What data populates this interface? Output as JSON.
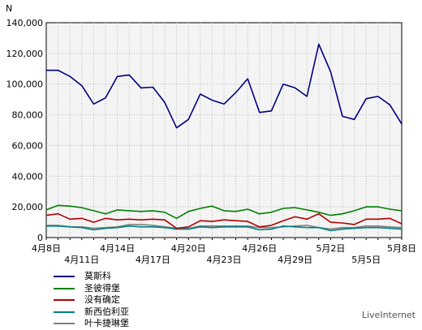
{
  "chart_data": {
    "type": "line",
    "ylabel": "N",
    "ylim": [
      0,
      140000
    ],
    "yticks": [
      0,
      20000,
      40000,
      60000,
      80000,
      100000,
      120000,
      140000
    ],
    "ytick_labels": [
      "0",
      "20,000",
      "40,000",
      "60,000",
      "80,000",
      "100,000",
      "120,000",
      "140,000"
    ],
    "x_count": 31,
    "xtick_labels_row1": [
      {
        "i": 0,
        "label": "4月8日"
      },
      {
        "i": 6,
        "label": "4月14日"
      },
      {
        "i": 12,
        "label": "4月20日"
      },
      {
        "i": 18,
        "label": "4月26日"
      },
      {
        "i": 24,
        "label": "5月2日"
      },
      {
        "i": 30,
        "label": "5月8日"
      }
    ],
    "xtick_labels_row2": [
      {
        "i": 3,
        "label": "4月11日"
      },
      {
        "i": 9,
        "label": "4月17日"
      },
      {
        "i": 15,
        "label": "4月23日"
      },
      {
        "i": 21,
        "label": "4月29日"
      },
      {
        "i": 27,
        "label": "5月5日"
      }
    ],
    "grid": true,
    "legend_position": "bottom",
    "series": [
      {
        "name": "莫斯科",
        "color": "#000080",
        "values": [
          109000,
          109000,
          105000,
          99000,
          87000,
          91000,
          105000,
          106000,
          97500,
          98000,
          88000,
          71500,
          77000,
          93500,
          89500,
          87000,
          94500,
          103500,
          81500,
          82500,
          100000,
          97500,
          92000,
          126000,
          108000,
          79000,
          77000,
          90500,
          92000,
          86500,
          74000
        ]
      },
      {
        "name": "圣彼得堡",
        "color": "#008000",
        "values": [
          18000,
          21000,
          20500,
          19500,
          17500,
          15500,
          18000,
          17500,
          17000,
          17500,
          16500,
          12500,
          17000,
          19000,
          20500,
          17500,
          17000,
          18500,
          15500,
          16500,
          19000,
          19500,
          18000,
          16500,
          14500,
          15500,
          17500,
          20000,
          20000,
          18500,
          17500
        ]
      },
      {
        "name": "没有确定",
        "color": "#b00000",
        "values": [
          14500,
          15500,
          12000,
          12500,
          10000,
          12500,
          11500,
          12000,
          11500,
          12000,
          11500,
          6000,
          7000,
          11000,
          10500,
          11500,
          11000,
          10500,
          7000,
          8000,
          11000,
          13500,
          12000,
          15500,
          10000,
          9500,
          8500,
          12000,
          12000,
          12500,
          9000
        ]
      },
      {
        "name": "新西伯利亚",
        "color": "#008080",
        "values": [
          7500,
          7500,
          7000,
          6500,
          5000,
          6000,
          6500,
          7500,
          7000,
          7000,
          6500,
          5500,
          5500,
          7000,
          6500,
          7000,
          7000,
          7000,
          5000,
          5500,
          7500,
          7000,
          6500,
          6500,
          4500,
          5500,
          6000,
          6500,
          6500,
          6000,
          5500
        ]
      },
      {
        "name": "叶卡捷琳堡",
        "color": "#808080",
        "values": [
          8000,
          8000,
          7000,
          7000,
          6000,
          6500,
          7000,
          8500,
          8500,
          8000,
          7000,
          6000,
          6000,
          7500,
          7500,
          7500,
          7500,
          7500,
          6500,
          6500,
          7000,
          7500,
          8000,
          6500,
          5500,
          6500,
          6500,
          7500,
          7500,
          7000,
          6500
        ]
      }
    ]
  },
  "watermark": "LiveInternet"
}
